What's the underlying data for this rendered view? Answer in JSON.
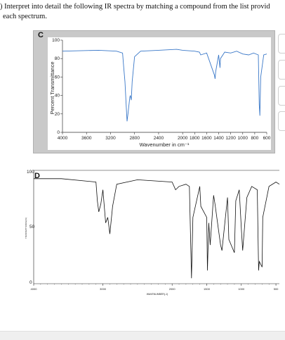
{
  "question": {
    "line1": ") Interpret into detail the following IR spectra by matching a compound from the list provid",
    "line2": "each spectrum."
  },
  "spectra": [
    {
      "label": "C",
      "ylabel": "Percent Transmittance",
      "xlabel": "Wavenumber in cm⁻¹",
      "yticks": [
        "100",
        "80",
        "60",
        "40",
        "20",
        "0"
      ],
      "xticks": [
        "4000",
        "3600",
        "3200",
        "2800",
        "2400",
        "2000",
        "1800",
        "1600",
        "1400",
        "1200",
        "1000",
        "800",
        "600"
      ]
    },
    {
      "label": "D",
      "ytick_top": "100",
      "ytick_mid": "50",
      "ytick_bottom": "0",
      "xticks": [
        "4000",
        "3000",
        "2000",
        "1500",
        "1000",
        "500"
      ],
      "xlabel": "WAVENUMBER(-1)",
      "ylabel": "TRANSMITTANCE(%)"
    }
  ],
  "chart_data": [
    {
      "type": "line",
      "title": "C",
      "xlabel": "Wavenumber in cm⁻¹",
      "ylabel": "Percent Transmittance",
      "xlim": [
        4000,
        600
      ],
      "ylim": [
        0,
        100
      ],
      "x": [
        4000,
        3400,
        3100,
        3000,
        2980,
        2960,
        2940,
        2925,
        2910,
        2880,
        2870,
        2855,
        2840,
        2800,
        2700,
        2400,
        2100,
        2000,
        1800,
        1720,
        1700,
        1600,
        1470,
        1460,
        1450,
        1400,
        1378,
        1370,
        1300,
        1200,
        1100,
        1000,
        900,
        820,
        740,
        725,
        715,
        700,
        650,
        600
      ],
      "y": [
        88,
        89,
        88,
        86,
        70,
        55,
        30,
        12,
        20,
        38,
        40,
        35,
        55,
        82,
        88,
        89,
        90,
        89,
        88,
        87,
        84,
        86,
        62,
        58,
        66,
        84,
        70,
        80,
        87,
        86,
        88,
        85,
        84,
        86,
        84,
        30,
        18,
        60,
        84,
        85
      ]
    },
    {
      "type": "line",
      "title": "D",
      "xlim": [
        4000,
        450
      ],
      "ylim": [
        0,
        100
      ],
      "x": [
        4000,
        3600,
        3100,
        3080,
        3060,
        3030,
        3000,
        2960,
        2930,
        2900,
        2860,
        2800,
        2500,
        2000,
        1950,
        1900,
        1800,
        1750,
        1720,
        1700,
        1600,
        1585,
        1500,
        1490,
        1470,
        1450,
        1400,
        1380,
        1300,
        1280,
        1200,
        1180,
        1100,
        1080,
        1030,
        1000,
        980,
        920,
        850,
        770,
        750,
        740,
        700,
        690,
        600,
        500,
        450
      ],
      "y": [
        95,
        95,
        92,
        75,
        65,
        72,
        85,
        55,
        60,
        45,
        70,
        90,
        94,
        92,
        85,
        88,
        90,
        88,
        5,
        60,
        88,
        70,
        60,
        12,
        55,
        35,
        80,
        72,
        35,
        30,
        78,
        40,
        28,
        75,
        85,
        50,
        30,
        78,
        88,
        85,
        12,
        20,
        15,
        60,
        88,
        92,
        90
      ]
    }
  ]
}
